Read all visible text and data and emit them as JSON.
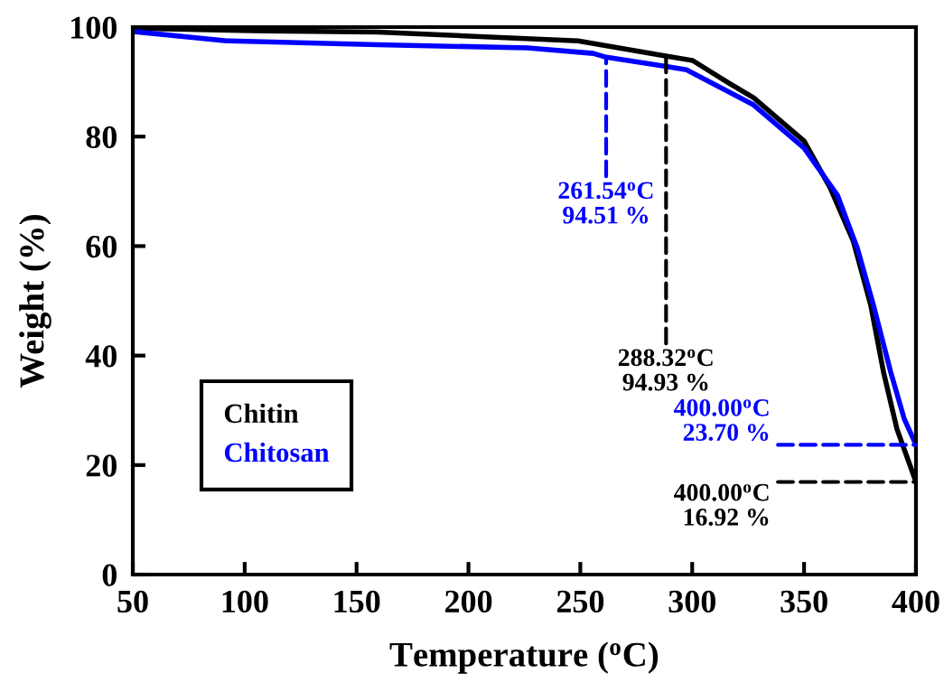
{
  "chart_data": {
    "type": "line",
    "xlabel": "Temperature ($^{o}$C)",
    "ylabel": "Weight (%)",
    "xlim": [
      50,
      400
    ],
    "ylim": [
      0,
      100
    ],
    "xticks": [
      50,
      100,
      150,
      200,
      250,
      300,
      350,
      400
    ],
    "yticks": [
      0,
      20,
      40,
      60,
      80,
      100
    ],
    "grid": false,
    "legend": "bottom left",
    "marker": "none",
    "line_style": "solid",
    "series": [
      {
        "name": "Chitin",
        "color": "#000000",
        "x": [
          50,
          109.4,
          159.4,
          249,
          287,
          300.2,
          316.3,
          327.4,
          350,
          361.7,
          372,
          379.8,
          385.5,
          391.5,
          400
        ],
        "values": [
          99.8,
          99.3,
          99.1,
          97.5,
          94.8,
          93.9,
          89.8,
          87.1,
          79.2,
          70.6,
          60.9,
          49.2,
          37,
          26.6,
          16.92
        ]
      },
      {
        "name": "Chitosan",
        "color": "#0000ff",
        "x": [
          50,
          92,
          159.4,
          226.4,
          255.8,
          261.54,
          287,
          297.5,
          327.4,
          350,
          364.9,
          373.8,
          381,
          388.7,
          394.8,
          400
        ],
        "values": [
          99.2,
          97.5,
          96.8,
          96.2,
          95.2,
          94.51,
          92.9,
          92.2,
          85.8,
          77.9,
          69.3,
          59.6,
          49.2,
          37,
          28.4,
          23.7
        ]
      }
    ],
    "annotations": [
      {
        "text": "261.54$^{o}$C\n94.51 %",
        "x": 261.54,
        "y": 94.51
      },
      {
        "text": "288.32$^{o}$C\n94.93 %",
        "x": 288.32,
        "y": 94.93
      },
      {
        "text": "400.00$^{o}$C\n23.70 %",
        "x": 400,
        "y": 23.7
      },
      {
        "text": "400.00$^{o}$C\n16.92 %",
        "x": 400,
        "y": 16.92
      }
    ]
  }
}
